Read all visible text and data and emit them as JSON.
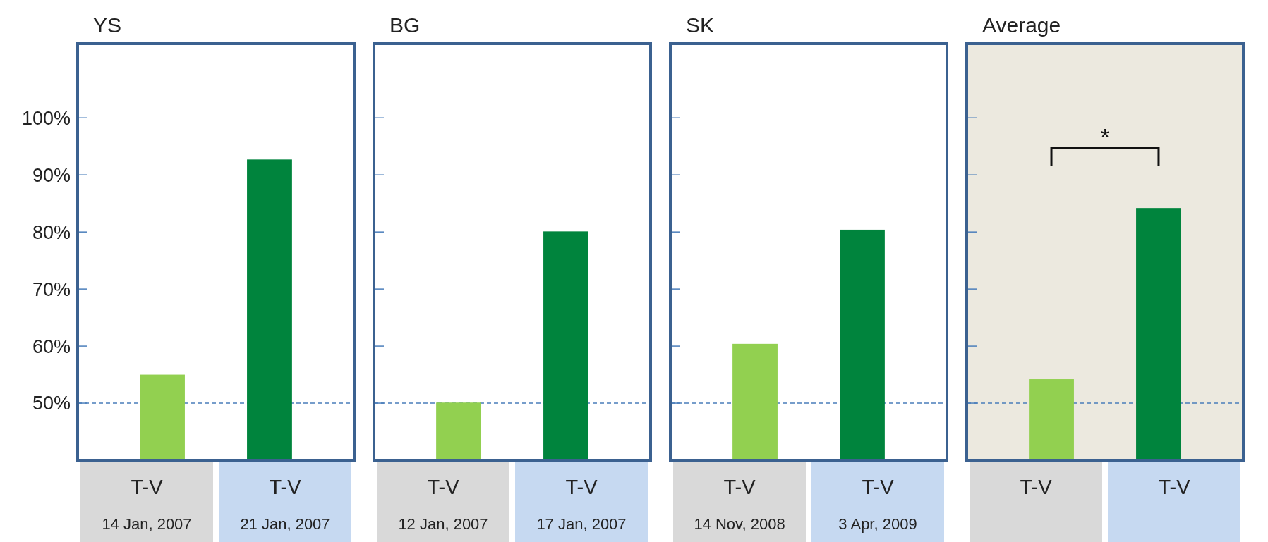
{
  "chart_data": [
    {
      "type": "bar",
      "title": "YS",
      "categories": [
        "T-V\n14 Jan, 2007",
        "T-V\n21 Jan, 2007"
      ],
      "values": [
        55.0,
        92.7
      ],
      "colors": [
        "#92d050",
        "#00843d"
      ],
      "ylim": [
        40,
        113
      ],
      "yticks": [
        {
          "value": 50,
          "label": "50%"
        },
        {
          "value": 60,
          "label": "60%"
        },
        {
          "value": 70,
          "label": "70%"
        },
        {
          "value": 80,
          "label": "80%"
        },
        {
          "value": 90,
          "label": "90%"
        },
        {
          "value": 100,
          "label": "100%"
        }
      ],
      "ref_lines": [
        {
          "axis": "y",
          "value": 50,
          "color": "#4a7ebb",
          "line_style": "dashed"
        }
      ],
      "grid": false
    },
    {
      "type": "bar",
      "title": "BG",
      "categories": [
        "T-V\n12 Jan, 2007",
        "T-V\n17 Jan, 2007"
      ],
      "values": [
        50.1,
        80.1
      ],
      "colors": [
        "#92d050",
        "#00843d"
      ],
      "ylim": [
        40,
        113
      ],
      "yticks": [
        50,
        60,
        70,
        80,
        90,
        100
      ],
      "tick_labels": "x",
      "ref_lines": [
        {
          "axis": "y",
          "value": 50,
          "color": "#4a7ebb",
          "line_style": "dashed"
        }
      ],
      "grid": false
    },
    {
      "type": "bar",
      "title": "SK",
      "categories": [
        "T-V\n14 Nov, 2008",
        "T-V\n3 Apr, 2009"
      ],
      "values": [
        60.4,
        80.4
      ],
      "colors": [
        "#92d050",
        "#00843d"
      ],
      "ylim": [
        40,
        113
      ],
      "yticks": [
        50,
        60,
        70,
        80,
        90,
        100
      ],
      "tick_labels": "x",
      "ref_lines": [
        {
          "axis": "y",
          "value": 50,
          "color": "#4a7ebb",
          "line_style": "dashed"
        }
      ],
      "grid": false
    },
    {
      "type": "bar",
      "title": "Average",
      "categories": [
        "T-V",
        "T-V"
      ],
      "values": [
        54.2,
        84.2
      ],
      "colors": [
        "#92d050",
        "#00843d"
      ],
      "ylim": [
        40,
        113
      ],
      "yticks": [
        50,
        60,
        70,
        80,
        90,
        100
      ],
      "tick_labels": "x",
      "ref_lines": [
        {
          "axis": "y",
          "value": 50,
          "color": "#4a7ebb",
          "line_style": "dashed"
        }
      ],
      "bands": [
        {
          "axis": "y",
          "from": 40,
          "to": 113,
          "color": "#ece9df"
        }
      ],
      "annotations": [
        "*"
      ],
      "grid": false
    }
  ]
}
